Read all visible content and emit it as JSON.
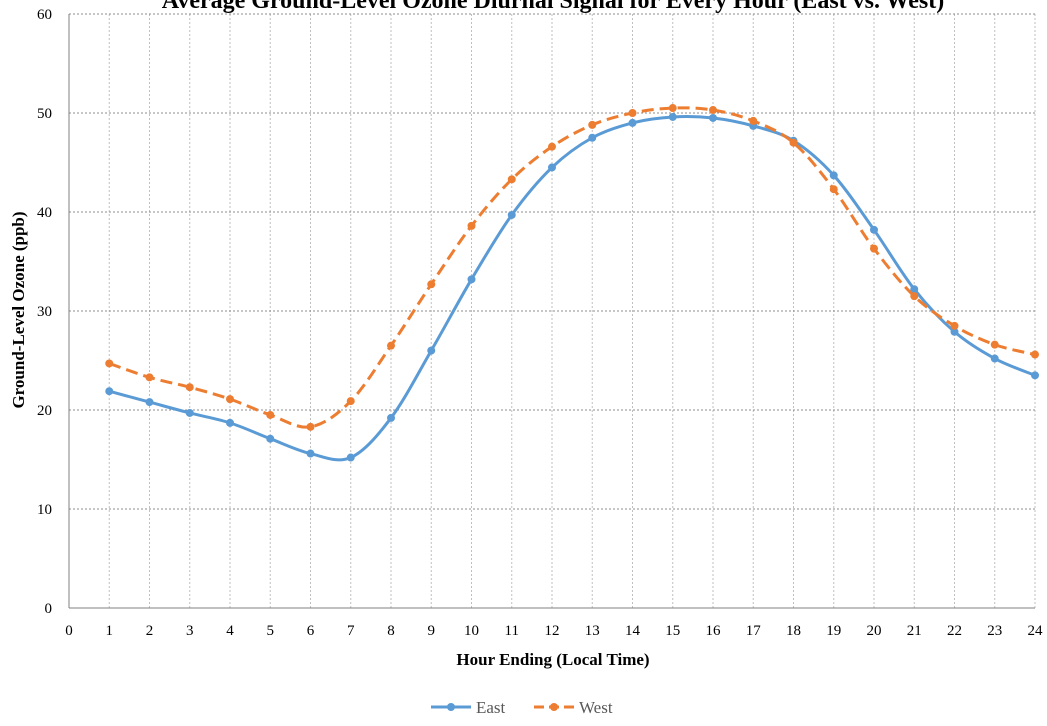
{
  "chart_data": {
    "type": "line",
    "title": "Average Ground-Level Ozone Diurnal Signal for Every Hour (East vs. West)",
    "xlabel": "Hour Ending (Local Time)",
    "ylabel": "Ground-Level Ozone (ppb)",
    "x": [
      1,
      2,
      3,
      4,
      5,
      6,
      7,
      8,
      9,
      10,
      11,
      12,
      13,
      14,
      15,
      16,
      17,
      18,
      19,
      20,
      21,
      22,
      23,
      24
    ],
    "xlim": [
      0,
      24
    ],
    "ylim": [
      0,
      60
    ],
    "x_ticks": [
      "0",
      "1",
      "2",
      "3",
      "4",
      "5",
      "6",
      "7",
      "8",
      "9",
      "10",
      "11",
      "12",
      "13",
      "14",
      "15",
      "16",
      "17",
      "18",
      "19",
      "20",
      "21",
      "22",
      "23",
      "24"
    ],
    "y_ticks": [
      "0",
      "10",
      "20",
      "30",
      "40",
      "50",
      "60"
    ],
    "grid": true,
    "legend_position": "bottom",
    "series": [
      {
        "name": "East",
        "color": "#5B9BD5",
        "style": "solid",
        "values": [
          21.9,
          20.8,
          19.7,
          18.7,
          17.1,
          15.6,
          15.2,
          19.2,
          26.0,
          33.2,
          39.7,
          44.5,
          47.5,
          49.0,
          49.6,
          49.5,
          48.7,
          47.2,
          43.7,
          38.2,
          32.2,
          27.9,
          25.2,
          23.5
        ]
      },
      {
        "name": "West",
        "color": "#ED7D31",
        "style": "dashed",
        "values": [
          24.7,
          23.3,
          22.3,
          21.1,
          19.5,
          18.3,
          20.9,
          26.5,
          32.7,
          38.6,
          43.3,
          46.6,
          48.8,
          50.0,
          50.5,
          50.3,
          49.2,
          47.0,
          42.3,
          36.3,
          31.5,
          28.5,
          26.6,
          25.6
        ]
      }
    ]
  }
}
